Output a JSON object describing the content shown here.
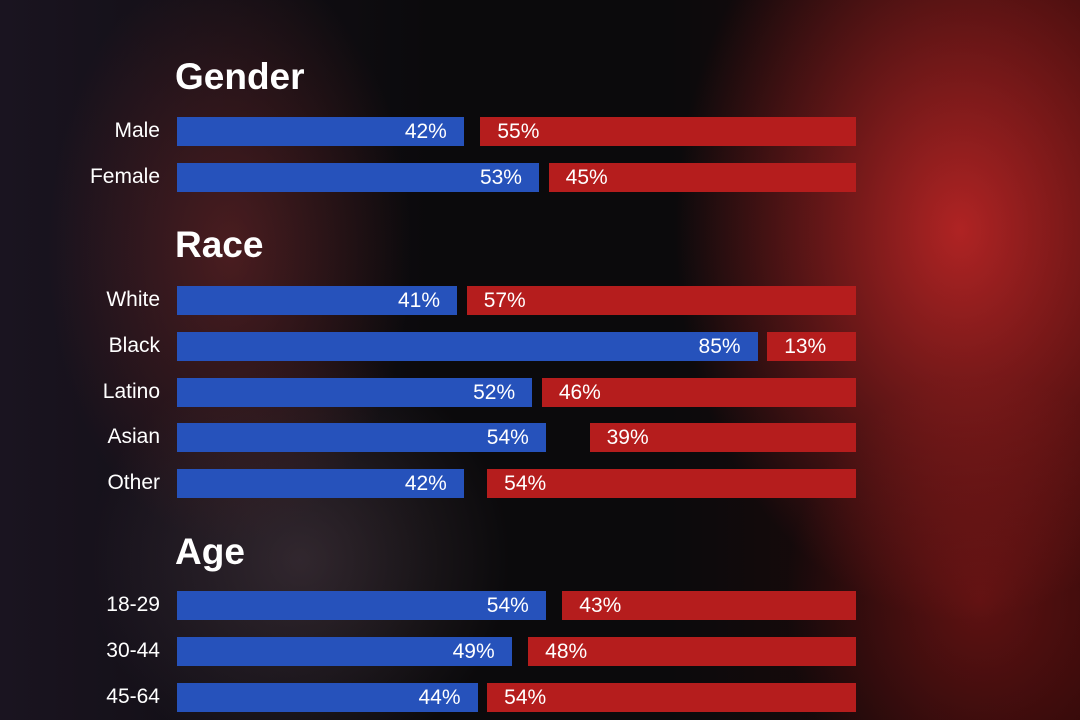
{
  "chart_data": {
    "type": "bar",
    "orientation": "horizontal",
    "colors": {
      "blue": "#2652bb",
      "red": "#b51d1d"
    },
    "groups": [
      {
        "title": "Gender",
        "categories": [
          "Male",
          "Female"
        ],
        "blue": [
          42,
          53
        ],
        "red": [
          55,
          45
        ]
      },
      {
        "title": "Race",
        "categories": [
          "White",
          "Black",
          "Latino",
          "Asian",
          "Other"
        ],
        "blue": [
          41,
          85,
          52,
          54,
          42
        ],
        "red": [
          57,
          13,
          46,
          39,
          54
        ]
      },
      {
        "title": "Age",
        "categories": [
          "18-29",
          "30-44",
          "45-64"
        ],
        "blue": [
          54,
          49,
          44
        ],
        "red": [
          43,
          48,
          54
        ]
      }
    ],
    "unit": "%"
  }
}
